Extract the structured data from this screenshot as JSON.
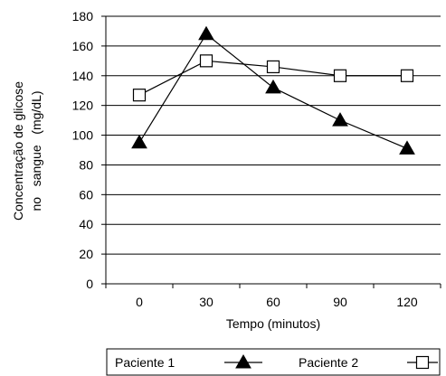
{
  "chart_data": {
    "type": "line",
    "xlabel": "Tempo (minutos)",
    "ylabel_line1": "Concentração de glicose",
    "ylabel_line2": "no   sangue   (mg/dL)",
    "x": [
      "0",
      "30",
      "60",
      "90",
      "120"
    ],
    "ylim": [
      0,
      180
    ],
    "yticks": [
      0,
      20,
      40,
      60,
      80,
      100,
      120,
      140,
      160,
      180
    ],
    "grid": true,
    "legend_position": "bottom",
    "series": [
      {
        "name": "Paciente 1",
        "marker": "filled-triangle",
        "color": "#000000",
        "values": [
          95,
          168,
          132,
          110,
          91
        ]
      },
      {
        "name": "Paciente 2",
        "marker": "open-square",
        "color": "#000000",
        "values": [
          127,
          150,
          146,
          140,
          140
        ]
      }
    ]
  }
}
